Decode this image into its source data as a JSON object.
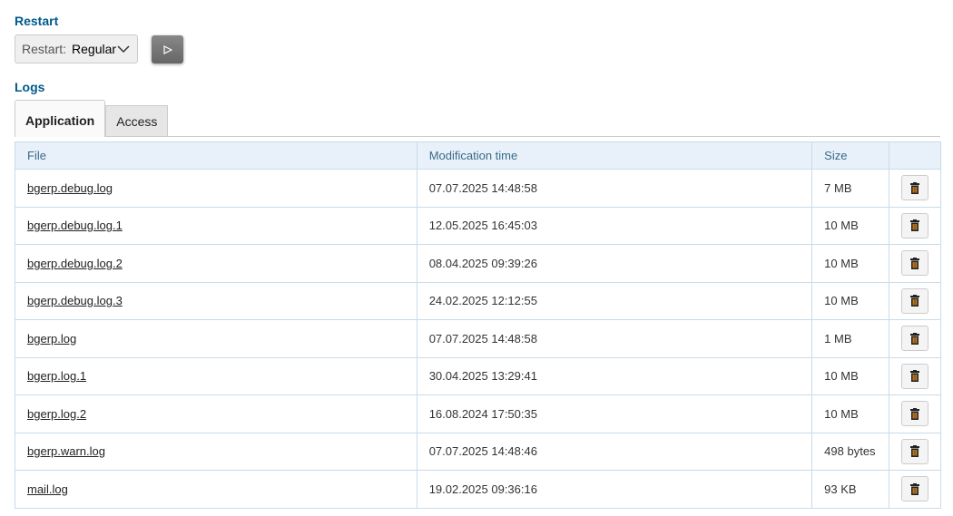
{
  "restart": {
    "heading": "Restart",
    "label": "Restart:",
    "value": "Regular",
    "run_icon": "play-icon"
  },
  "logs": {
    "heading": "Logs",
    "tabs": [
      {
        "label": "Application",
        "active": true
      },
      {
        "label": "Access",
        "active": false
      }
    ],
    "columns": [
      "File",
      "Modification time",
      "Size",
      ""
    ],
    "rows": [
      {
        "file": "bgerp.debug.log",
        "time": "07.07.2025 14:48:58",
        "size": "7 MB"
      },
      {
        "file": "bgerp.debug.log.1",
        "time": "12.05.2025 16:45:03",
        "size": "10 MB"
      },
      {
        "file": "bgerp.debug.log.2",
        "time": "08.04.2025 09:39:26",
        "size": "10 MB"
      },
      {
        "file": "bgerp.debug.log.3",
        "time": "24.02.2025 12:12:55",
        "size": "10 MB"
      },
      {
        "file": "bgerp.log",
        "time": "07.07.2025 14:48:58",
        "size": "1 MB"
      },
      {
        "file": "bgerp.log.1",
        "time": "30.04.2025 13:29:41",
        "size": "10 MB"
      },
      {
        "file": "bgerp.log.2",
        "time": "16.08.2024 17:50:35",
        "size": "10 MB"
      },
      {
        "file": "bgerp.warn.log",
        "time": "07.07.2025 14:48:46",
        "size": "498 bytes"
      },
      {
        "file": "mail.log",
        "time": "19.02.2025 09:36:16",
        "size": "93 KB"
      }
    ]
  }
}
